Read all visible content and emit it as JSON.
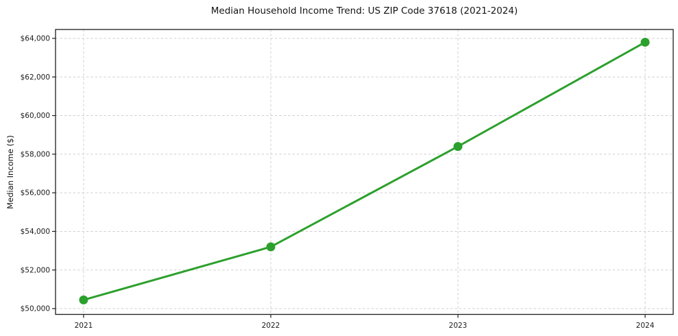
{
  "chart_data": {
    "type": "line",
    "title": "Median Household Income Trend: US ZIP Code 37618 (2021-2024)",
    "xlabel": "",
    "ylabel": "Median Income ($)",
    "x": [
      2021,
      2022,
      2023,
      2024
    ],
    "x_tick_labels": [
      "2021",
      "2022",
      "2023",
      "2024"
    ],
    "series": [
      {
        "name": "Median household income",
        "values": [
          50450,
          53200,
          58400,
          63800
        ]
      }
    ],
    "y_ticks": [
      50000,
      52000,
      54000,
      56000,
      58000,
      60000,
      62000,
      64000
    ],
    "y_tick_labels": [
      "$50,000",
      "$52,000",
      "$54,000",
      "$56,000",
      "$58,000",
      "$60,000",
      "$62,000",
      "$64,000"
    ],
    "xlim": [
      2020.85,
      2024.15
    ],
    "ylim": [
      49700,
      64460
    ],
    "grid": true,
    "grid_style": "dashed",
    "legend": false,
    "marker": "circle",
    "colors": {
      "line": "#2ca02c",
      "marker": "#2ca02c",
      "grid": "#cfcfcf",
      "spine": "#1c1c1c",
      "text": "#191919",
      "background": "#ffffff"
    }
  }
}
